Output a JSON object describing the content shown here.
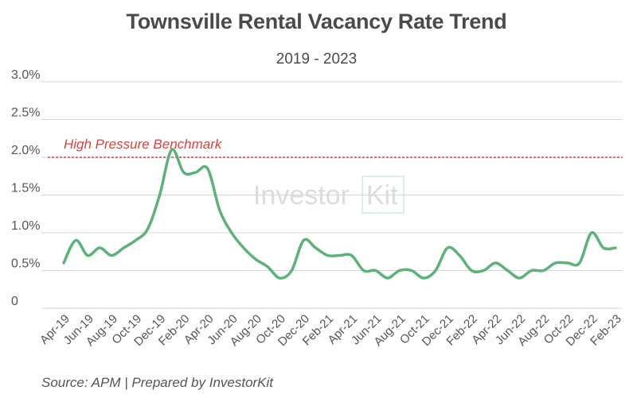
{
  "chart_data": {
    "type": "line",
    "title": "Townsville Rental Vacancy Rate Trend",
    "subtitle": "2019 - 2023",
    "source": "Source: APM | Prepared by InvestorKit",
    "watermark": "InvestorKit",
    "ylim": [
      0,
      3.0
    ],
    "yticks": [
      {
        "value": 0,
        "label": "0"
      },
      {
        "value": 0.5,
        "label": "0.5%"
      },
      {
        "value": 1.0,
        "label": "1.0%"
      },
      {
        "value": 1.5,
        "label": "1.5%"
      },
      {
        "value": 2.0,
        "label": "2.0%"
      },
      {
        "value": 2.5,
        "label": "2.5%"
      },
      {
        "value": 3.0,
        "label": "3.0%"
      }
    ],
    "x_labels": [
      "Apr-19",
      "Jun-19",
      "Aug-19",
      "Oct-19",
      "Dec-19",
      "Feb-20",
      "Apr-20",
      "Jun-20",
      "Aug-20",
      "Oct-20",
      "Dec-20",
      "Feb-21",
      "Apr-21",
      "Jun-21",
      "Aug-21",
      "Oct-21",
      "Dec-21",
      "Feb-22",
      "Apr-22",
      "Jun-22",
      "Aug-22",
      "Oct-22",
      "Dec-22",
      "Feb-23"
    ],
    "series": [
      {
        "color": "#5cb37a",
        "x": [
          "Apr-19",
          "May-19",
          "Jun-19",
          "Jul-19",
          "Aug-19",
          "Sep-19",
          "Oct-19",
          "Nov-19",
          "Dec-19",
          "Jan-20",
          "Feb-20",
          "Mar-20",
          "Apr-20",
          "May-20",
          "Jun-20",
          "Jul-20",
          "Aug-20",
          "Sep-20",
          "Oct-20",
          "Nov-20",
          "Dec-20",
          "Jan-21",
          "Feb-21",
          "Mar-21",
          "Apr-21",
          "May-21",
          "Jun-21",
          "Jul-21",
          "Aug-21",
          "Sep-21",
          "Oct-21",
          "Nov-21",
          "Dec-21",
          "Jan-22",
          "Feb-22",
          "Mar-22",
          "Apr-22",
          "May-22",
          "Jun-22",
          "Jul-22",
          "Aug-22",
          "Sep-22",
          "Oct-22",
          "Nov-22",
          "Dec-22",
          "Jan-23",
          "Feb-23"
        ],
        "values": [
          0.6,
          0.9,
          0.7,
          0.8,
          0.7,
          0.8,
          0.9,
          1.05,
          1.5,
          2.1,
          1.8,
          1.8,
          1.85,
          1.3,
          1.0,
          0.8,
          0.65,
          0.55,
          0.4,
          0.5,
          0.9,
          0.8,
          0.7,
          0.7,
          0.7,
          0.5,
          0.5,
          0.4,
          0.5,
          0.5,
          0.4,
          0.5,
          0.8,
          0.7,
          0.5,
          0.5,
          0.6,
          0.5,
          0.4,
          0.5,
          0.5,
          0.6,
          0.6,
          0.6,
          1.0,
          0.8,
          0.8
        ]
      }
    ],
    "benchmark": {
      "label": "High Pressure Benchmark",
      "value": 2.0,
      "color": "#d9433f"
    },
    "grid": true,
    "legend": false
  }
}
